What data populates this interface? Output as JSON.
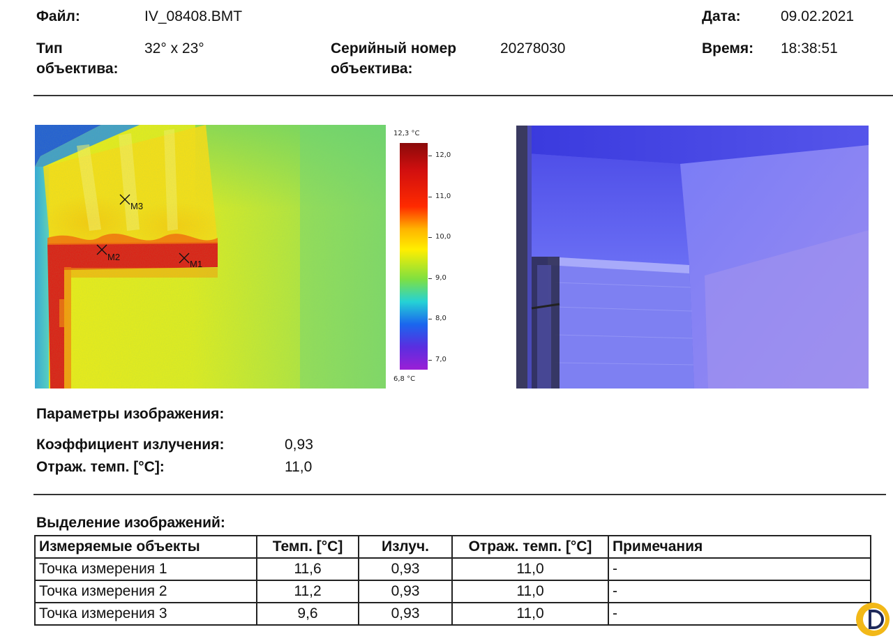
{
  "header": {
    "file_label": "Файл:",
    "file_value": "IV_08408.BMT",
    "date_label": "Дата:",
    "date_value": "09.02.2021",
    "lens_type_label_1": "Тип",
    "lens_type_label_2": "объектива:",
    "lens_type_value": "32° x 23°",
    "serial_label_1": "Серийный номер",
    "serial_label_2": "объектива:",
    "serial_value": "20278030",
    "time_label": "Время:",
    "time_value": "18:38:51"
  },
  "thermal": {
    "markers": [
      "M1",
      "M2",
      "M3"
    ],
    "scale_max": "12,3 °C",
    "scale_min": "6,8 °C",
    "ticks": [
      "12,0",
      "11,0",
      "10,0",
      "9,0",
      "8,0",
      "7,0"
    ]
  },
  "params": {
    "title": "Параметры изображения:",
    "emissivity_label": "Коэффициент излучения:",
    "emissivity_value": "0,93",
    "refl_temp_label": "Отраж. темп. [°C]:",
    "refl_temp_value": "11,0"
  },
  "selection": {
    "title": "Выделение изображений:",
    "columns": [
      "Измеряемые объекты",
      "Темп. [°C]",
      "Излуч.",
      "Отраж. темп. [°C]",
      "Примечания"
    ],
    "rows": [
      [
        "Точка измерения 1",
        "11,6",
        "0,93",
        "11,0",
        "-"
      ],
      [
        "Точка измерения 2",
        "11,2",
        "0,93",
        "11,0",
        "-"
      ],
      [
        "Точка измерения 3",
        "9,6",
        "0,93",
        "11,0",
        "-"
      ]
    ]
  },
  "colors": {
    "hot": "#e10f0f",
    "warm": "#f6f10c",
    "cool": "#3fc7dc",
    "photo_blue": "#5a5cf0",
    "logo": "#f2b818"
  }
}
